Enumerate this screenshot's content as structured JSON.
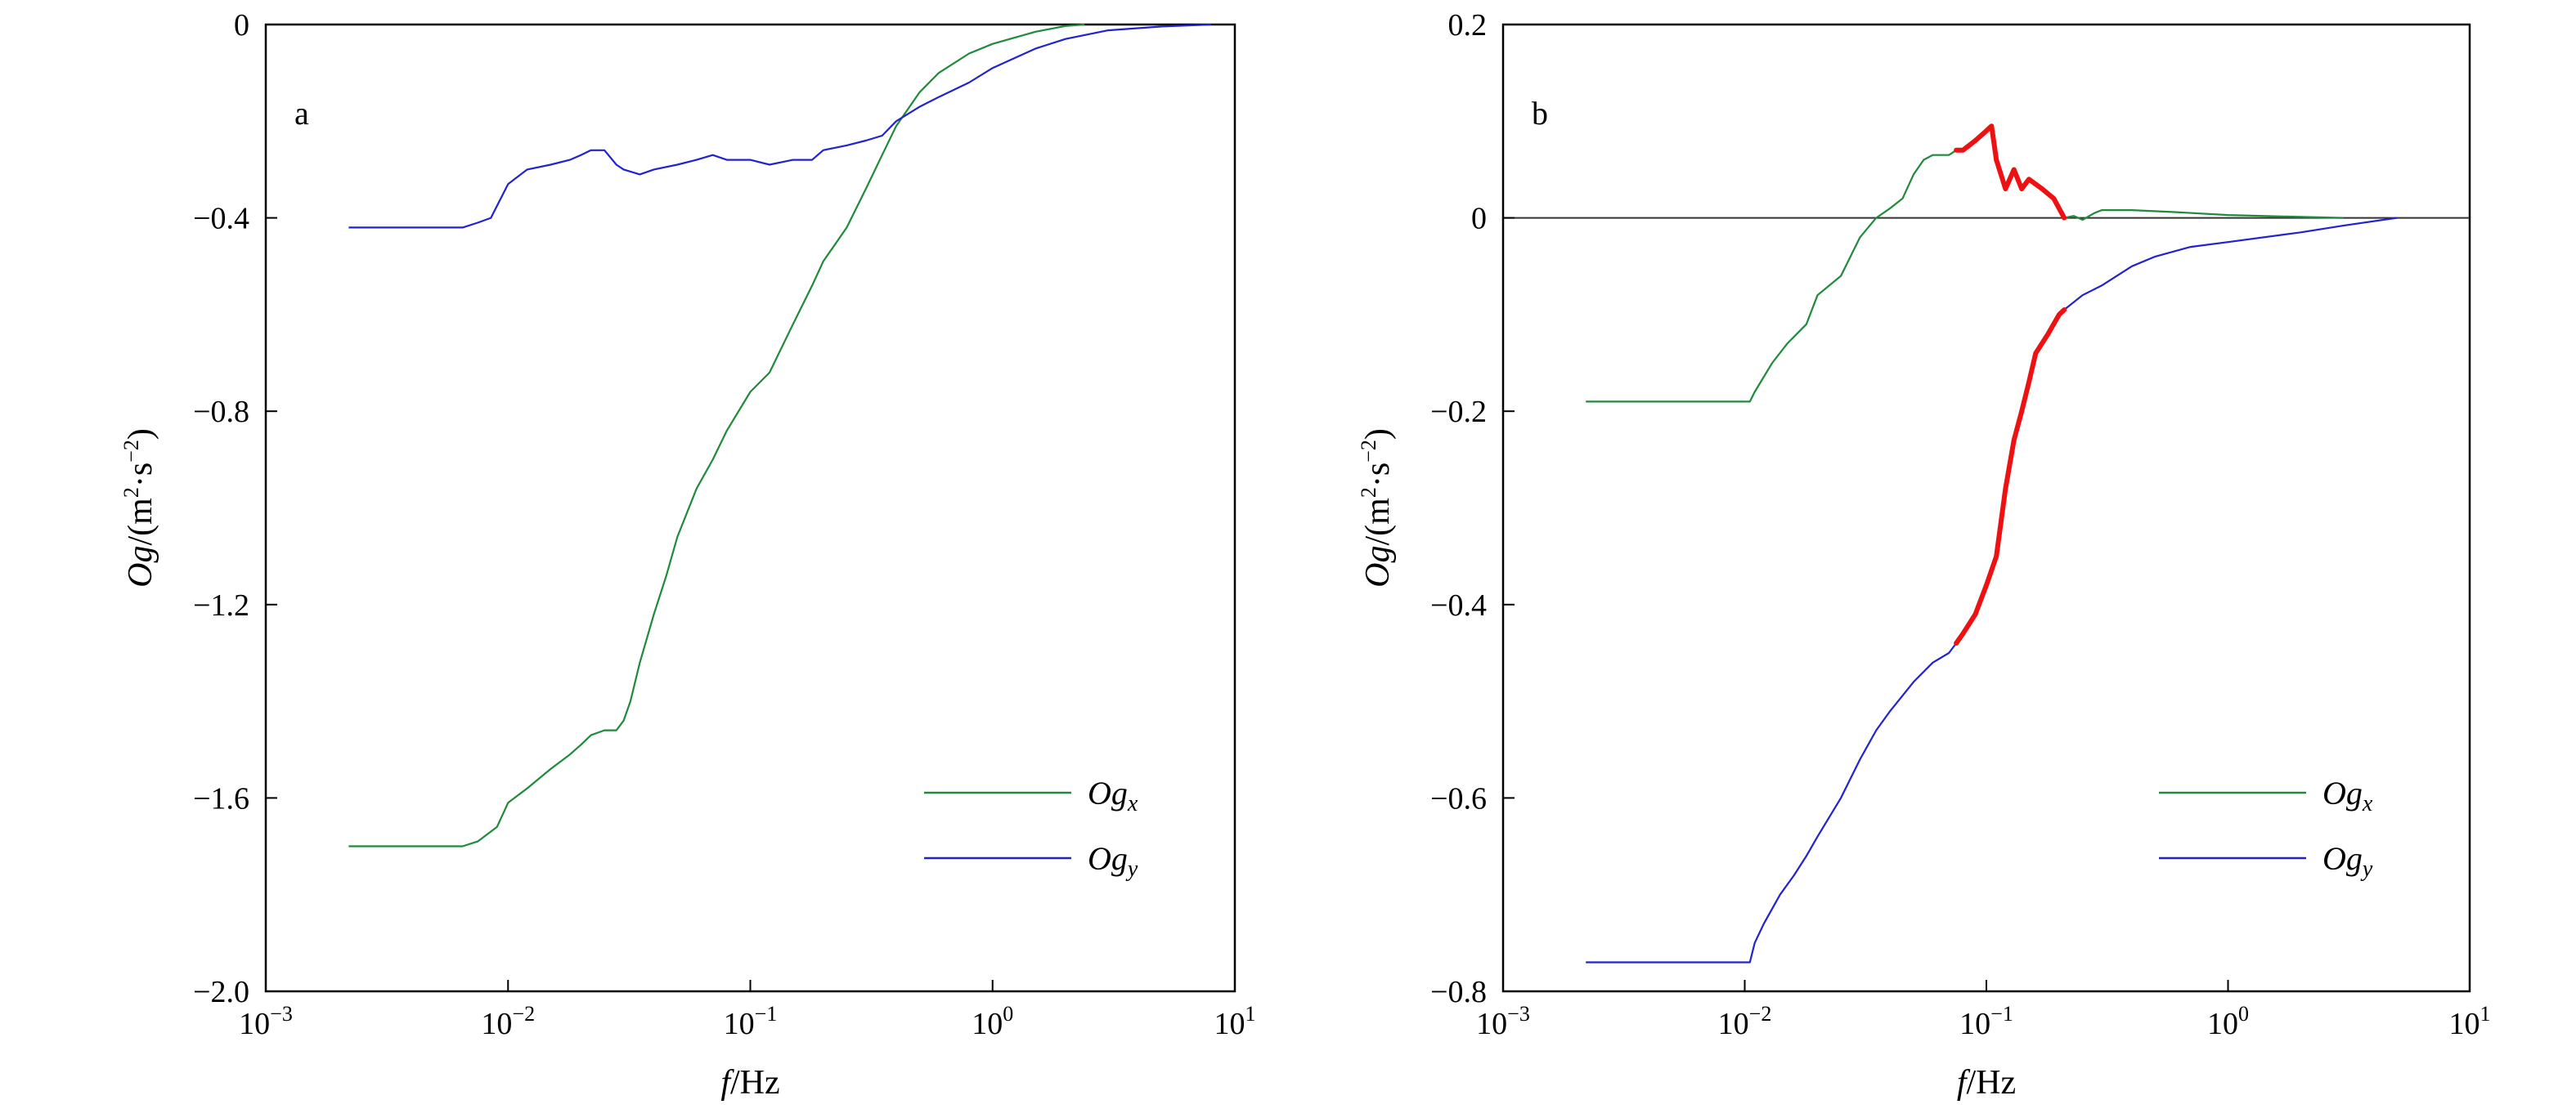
{
  "chart_data": [
    {
      "type": "line",
      "panel_label": "a",
      "x_scale": "log",
      "xlim": [
        0.001,
        10
      ],
      "ylim": [
        -2.0,
        0
      ],
      "x_ticks": [
        {
          "value": 0.001,
          "base": "10",
          "exp": "−3"
        },
        {
          "value": 0.01,
          "base": "10",
          "exp": "−2"
        },
        {
          "value": 0.1,
          "base": "10",
          "exp": "−1"
        },
        {
          "value": 1,
          "base": "10",
          "exp": "0"
        },
        {
          "value": 10,
          "base": "10",
          "exp": "1"
        }
      ],
      "y_ticks": [
        {
          "value": 0,
          "label": "0"
        },
        {
          "value": -0.4,
          "label": "−0.4"
        },
        {
          "value": -0.8,
          "label": "−0.8"
        },
        {
          "value": -1.2,
          "label": "−1.2"
        },
        {
          "value": -1.6,
          "label": "−1.6"
        },
        {
          "value": -2.0,
          "label": "−2.0"
        }
      ],
      "xlabel": {
        "italic": "f",
        "rest": "/Hz"
      },
      "ylabel": {
        "italic": "Og",
        "rest1": "/(m",
        "sup1": "2",
        "rest2": "·s",
        "sup2": "−2",
        "rest3": ")"
      },
      "legend_position": "bottom-right",
      "series": [
        {
          "legend_main": "Og",
          "legend_sub": "x",
          "color": "#1f8a3a",
          "x": [
            0.0022,
            0.004,
            0.0065,
            0.0075,
            0.009,
            0.01,
            0.012,
            0.015,
            0.018,
            0.02,
            0.022,
            0.025,
            0.028,
            0.03,
            0.032,
            0.035,
            0.04,
            0.045,
            0.05,
            0.06,
            0.07,
            0.08,
            0.1,
            0.12,
            0.15,
            0.18,
            0.2,
            0.25,
            0.3,
            0.35,
            0.4,
            0.5,
            0.6,
            0.8,
            1.0,
            1.5,
            2.0,
            2.4
          ],
          "y": [
            -1.7,
            -1.7,
            -1.7,
            -1.69,
            -1.66,
            -1.61,
            -1.58,
            -1.54,
            -1.51,
            -1.49,
            -1.47,
            -1.46,
            -1.46,
            -1.44,
            -1.4,
            -1.32,
            -1.22,
            -1.14,
            -1.06,
            -0.96,
            -0.9,
            -0.84,
            -0.76,
            -0.72,
            -0.62,
            -0.54,
            -0.49,
            -0.42,
            -0.34,
            -0.27,
            -0.21,
            -0.14,
            -0.1,
            -0.06,
            -0.04,
            -0.015,
            -0.003,
            0.0
          ]
        },
        {
          "legend_main": "Og",
          "legend_sub": "y",
          "color": "#2222d0",
          "x": [
            0.0022,
            0.004,
            0.0065,
            0.0075,
            0.0085,
            0.01,
            0.012,
            0.015,
            0.018,
            0.02,
            0.022,
            0.025,
            0.028,
            0.03,
            0.035,
            0.04,
            0.05,
            0.06,
            0.07,
            0.08,
            0.1,
            0.12,
            0.15,
            0.18,
            0.2,
            0.25,
            0.3,
            0.35,
            0.4,
            0.5,
            0.6,
            0.8,
            1.0,
            1.5,
            2.0,
            3.0,
            5.0,
            8.0
          ],
          "y": [
            -0.42,
            -0.42,
            -0.42,
            -0.41,
            -0.4,
            -0.33,
            -0.3,
            -0.29,
            -0.28,
            -0.27,
            -0.26,
            -0.26,
            -0.29,
            -0.3,
            -0.31,
            -0.3,
            -0.29,
            -0.28,
            -0.27,
            -0.28,
            -0.28,
            -0.29,
            -0.28,
            -0.28,
            -0.26,
            -0.25,
            -0.24,
            -0.23,
            -0.2,
            -0.17,
            -0.15,
            -0.12,
            -0.09,
            -0.05,
            -0.03,
            -0.012,
            -0.004,
            0.0
          ]
        }
      ]
    },
    {
      "type": "line",
      "panel_label": "b",
      "x_scale": "log",
      "xlim": [
        0.001,
        10
      ],
      "ylim": [
        -0.8,
        0.2
      ],
      "x_ticks": [
        {
          "value": 0.001,
          "base": "10",
          "exp": "−3"
        },
        {
          "value": 0.01,
          "base": "10",
          "exp": "−2"
        },
        {
          "value": 0.1,
          "base": "10",
          "exp": "−1"
        },
        {
          "value": 1,
          "base": "10",
          "exp": "0"
        },
        {
          "value": 10,
          "base": "10",
          "exp": "1"
        }
      ],
      "y_ticks": [
        {
          "value": 0.2,
          "label": "0.2"
        },
        {
          "value": 0,
          "label": "0"
        },
        {
          "value": -0.2,
          "label": "−0.2"
        },
        {
          "value": -0.4,
          "label": "−0.4"
        },
        {
          "value": -0.6,
          "label": "−0.6"
        },
        {
          "value": -0.8,
          "label": "−0.8"
        }
      ],
      "xlabel": {
        "italic": "f",
        "rest": "/Hz"
      },
      "ylabel": {
        "italic": "Og",
        "rest1": "/(m",
        "sup1": "2",
        "rest2": "·s",
        "sup2": "−2",
        "rest3": ")"
      },
      "legend_position": "bottom-right",
      "zero_line": true,
      "highlight_color": "#ee1111",
      "series": [
        {
          "legend_main": "Og",
          "legend_sub": "x",
          "color": "#1f8a3a",
          "highlight_range": [
            0.075,
            0.21
          ],
          "x": [
            0.0022,
            0.005,
            0.0105,
            0.011,
            0.013,
            0.015,
            0.018,
            0.02,
            0.025,
            0.03,
            0.035,
            0.04,
            0.045,
            0.05,
            0.055,
            0.06,
            0.07,
            0.075,
            0.08,
            0.09,
            0.1,
            0.105,
            0.11,
            0.12,
            0.13,
            0.14,
            0.15,
            0.17,
            0.19,
            0.21,
            0.23,
            0.25,
            0.28,
            0.3,
            0.4,
            0.6,
            1.0,
            2.0,
            3.0
          ],
          "y": [
            -0.19,
            -0.19,
            -0.19,
            -0.18,
            -0.15,
            -0.13,
            -0.11,
            -0.08,
            -0.06,
            -0.02,
            0.0,
            0.01,
            0.02,
            0.045,
            0.06,
            0.065,
            0.065,
            0.07,
            0.07,
            0.08,
            0.09,
            0.095,
            0.06,
            0.03,
            0.05,
            0.03,
            0.04,
            0.03,
            0.02,
            0.0,
            0.002,
            -0.002,
            0.005,
            0.008,
            0.008,
            0.006,
            0.003,
            0.001,
            0.0
          ]
        },
        {
          "legend_main": "Og",
          "legend_sub": "y",
          "color": "#2222d0",
          "highlight_range": [
            0.075,
            0.21
          ],
          "x": [
            0.0022,
            0.005,
            0.0105,
            0.011,
            0.012,
            0.014,
            0.016,
            0.018,
            0.02,
            0.025,
            0.03,
            0.035,
            0.04,
            0.05,
            0.06,
            0.07,
            0.075,
            0.08,
            0.09,
            0.1,
            0.11,
            0.12,
            0.13,
            0.14,
            0.15,
            0.16,
            0.18,
            0.2,
            0.21,
            0.25,
            0.3,
            0.4,
            0.5,
            0.7,
            1.0,
            2.0,
            3.0,
            5.0
          ],
          "y": [
            -0.77,
            -0.77,
            -0.77,
            -0.75,
            -0.73,
            -0.7,
            -0.68,
            -0.66,
            -0.64,
            -0.6,
            -0.56,
            -0.53,
            -0.51,
            -0.48,
            -0.46,
            -0.45,
            -0.44,
            -0.43,
            -0.41,
            -0.38,
            -0.35,
            -0.28,
            -0.23,
            -0.2,
            -0.17,
            -0.14,
            -0.12,
            -0.1,
            -0.095,
            -0.08,
            -0.07,
            -0.05,
            -0.04,
            -0.03,
            -0.025,
            -0.015,
            -0.008,
            0.0
          ]
        }
      ]
    }
  ]
}
